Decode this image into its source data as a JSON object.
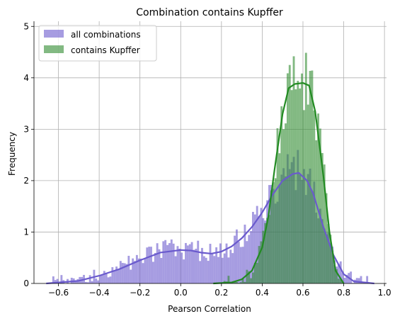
{
  "chart_data": {
    "type": "bar",
    "title": "Combination contains Kupffer",
    "xlabel": "Pearson Correlation",
    "ylabel": "Frequency",
    "xlim": [
      -0.72,
      1.01
    ],
    "ylim": [
      0,
      5.1
    ],
    "xticks": [
      -0.6,
      -0.4,
      -0.2,
      0.0,
      0.2,
      0.4,
      0.6,
      0.8,
      1.0
    ],
    "xtick_labels": [
      "−0.6",
      "−0.4",
      "−0.2",
      "0.0",
      "0.2",
      "0.4",
      "0.6",
      "0.8",
      "1.0"
    ],
    "yticks": [
      0,
      1,
      2,
      3,
      4,
      5
    ],
    "ytick_labels": [
      "0",
      "1",
      "2",
      "3",
      "4",
      "5"
    ],
    "grid": true,
    "legend_position": "top-left",
    "bin_width": 0.01,
    "series": [
      {
        "name": "all combinations",
        "kind": "histogram",
        "color": "#6a5acd",
        "alpha": 0.6,
        "bin_starts": [
          -0.43,
          -0.33,
          -0.23,
          -0.13,
          -0.03,
          0.07,
          0.17,
          0.27,
          0.37,
          0.47,
          0.57,
          0.67,
          0.77
        ],
        "values": [
          0.12,
          0.2,
          0.35,
          0.5,
          0.62,
          0.6,
          0.58,
          0.7,
          1.05,
          1.75,
          2.15,
          1.35,
          0.12
        ]
      },
      {
        "name": "contains Kupffer",
        "kind": "histogram",
        "color": "#2e8b2e",
        "alpha": 0.6,
        "bin_starts": [
          0.3,
          0.4,
          0.5,
          0.6,
          0.7,
          0.8
        ],
        "values": [
          0.15,
          1.8,
          3.5,
          3.8,
          1.2,
          0.05
        ]
      },
      {
        "name": "",
        "kind": "kde",
        "color": "#6a5acd",
        "x": [
          -0.66,
          -0.5,
          -0.4,
          -0.3,
          -0.2,
          -0.1,
          0.0,
          0.05,
          0.1,
          0.15,
          0.2,
          0.25,
          0.3,
          0.35,
          0.4,
          0.45,
          0.5,
          0.55,
          0.58,
          0.62,
          0.65,
          0.7,
          0.75,
          0.8,
          0.85,
          0.95
        ],
        "y": [
          0.0,
          0.05,
          0.15,
          0.28,
          0.45,
          0.6,
          0.65,
          0.64,
          0.6,
          0.58,
          0.62,
          0.72,
          0.88,
          1.1,
          1.38,
          1.72,
          2.0,
          2.13,
          2.15,
          2.0,
          1.75,
          1.1,
          0.55,
          0.18,
          0.04,
          0.0
        ]
      },
      {
        "name": "",
        "kind": "kde",
        "color": "#228b22",
        "x": [
          0.16,
          0.25,
          0.3,
          0.35,
          0.4,
          0.43,
          0.46,
          0.5,
          0.53,
          0.56,
          0.6,
          0.63,
          0.66,
          0.7,
          0.73,
          0.76,
          0.8
        ],
        "y": [
          0.0,
          0.02,
          0.08,
          0.25,
          0.7,
          1.3,
          2.2,
          3.3,
          3.8,
          3.88,
          3.9,
          3.85,
          3.35,
          2.1,
          1.0,
          0.25,
          0.0
        ]
      }
    ]
  }
}
